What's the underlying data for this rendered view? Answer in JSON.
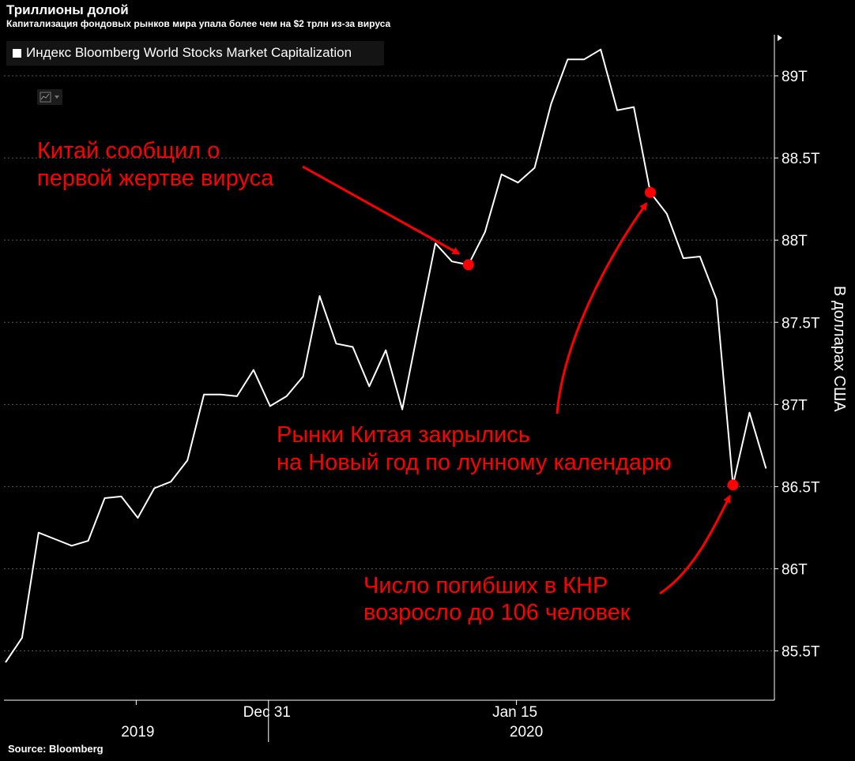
{
  "header": {
    "title": "Триллионы долой",
    "subtitle": "Капитализация фондовых рынков мира упала более чем на $2 трлн из-за вируса"
  },
  "footer": {
    "source": "Source: Bloomberg"
  },
  "legend": {
    "label": "Индекс Bloomberg World Stocks Market Capitalization"
  },
  "colors": {
    "background": "#000000",
    "line": "#ffffff",
    "annotation": "#ff0000",
    "axis": "#ffffff"
  },
  "icons": {
    "chart_type_toggle": "line-chart-icon"
  },
  "chart_data": {
    "type": "line",
    "ylabel": "В долларах США",
    "ylim": [
      85.2,
      89.25
    ],
    "yticks": [
      85.5,
      86,
      86.5,
      87,
      87.5,
      88,
      88.5,
      89
    ],
    "ytick_labels": [
      "85.5T",
      "86T",
      "86.5T",
      "87T",
      "87.5T",
      "88T",
      "88.5T",
      "89T"
    ],
    "xticks": [
      {
        "label": "Dec 31",
        "x": 16
      },
      {
        "label": "Jan 15",
        "x": 31
      }
    ],
    "year_labels": [
      {
        "label": "2019",
        "x": 8
      },
      {
        "label": "2020",
        "x": 31.5
      }
    ],
    "year_divider_x": 16,
    "grid": "horizontal dashed",
    "legend_position": "top-left",
    "series": [
      {
        "x": [
          0,
          1,
          2,
          3,
          4,
          5,
          6,
          7,
          8,
          9,
          10,
          11,
          12,
          13,
          14,
          15,
          16,
          17,
          18,
          19,
          20,
          21,
          22,
          23,
          24,
          25,
          26,
          27,
          28,
          29,
          30,
          31,
          32,
          33,
          34,
          35,
          36,
          37,
          38,
          39,
          40,
          41,
          42,
          43,
          44,
          45,
          46
        ],
        "values": [
          85.43,
          85.58,
          86.22,
          86.18,
          86.14,
          86.17,
          86.43,
          86.44,
          86.31,
          86.49,
          86.53,
          86.66,
          87.06,
          87.06,
          87.05,
          87.21,
          86.99,
          87.05,
          87.17,
          87.66,
          87.37,
          87.35,
          87.11,
          87.33,
          86.97,
          87.48,
          87.98,
          87.87,
          87.85,
          88.05,
          88.4,
          88.35,
          88.44,
          88.83,
          89.1,
          89.1,
          89.16,
          88.79,
          88.81,
          88.29,
          88.16,
          87.89,
          87.9,
          87.64,
          86.51,
          86.95,
          86.61
        ]
      }
    ],
    "highlight_points": [
      {
        "x": 28,
        "y": 87.85
      },
      {
        "x": 39,
        "y": 88.29
      },
      {
        "x": 44,
        "y": 86.51
      }
    ],
    "annotations": [
      {
        "line1": "Китай сообщил о",
        "line2": "первой жертве вируса"
      },
      {
        "line1": "Рынки Китая закрылись",
        "line2": "на Новый год по лунному календарю"
      },
      {
        "line1": "Число погибших в КНР",
        "line2": "возросло до 106 человек"
      }
    ]
  }
}
